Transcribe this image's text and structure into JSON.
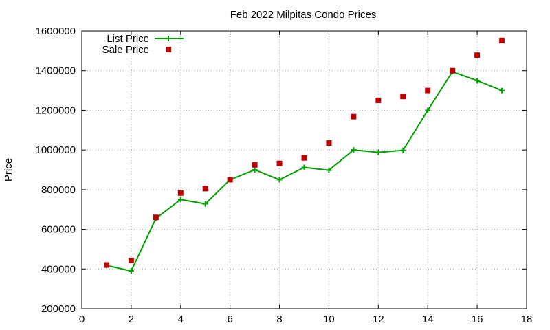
{
  "chart_data": {
    "type": "line",
    "title": "Feb 2022 Milpitas Condo Prices",
    "xlabel": "",
    "ylabel": "Price",
    "xlim": [
      0,
      18
    ],
    "ylim": [
      200000,
      1600000
    ],
    "x_ticks": [
      0,
      2,
      4,
      6,
      8,
      10,
      12,
      14,
      16,
      18
    ],
    "y_ticks": [
      200000,
      400000,
      600000,
      800000,
      1000000,
      1200000,
      1400000,
      1600000
    ],
    "x_tick_labels": [
      "0",
      "2",
      "4",
      "6",
      "8",
      "10",
      "12",
      "14",
      "16",
      "18"
    ],
    "y_tick_labels": [
      "200000",
      "400000",
      "600000",
      "800000",
      "1000000",
      "1200000",
      "1400000",
      "1600000"
    ],
    "grid": true,
    "legend_position": "top-left",
    "x": [
      1,
      2,
      3,
      4,
      5,
      6,
      7,
      8,
      9,
      10,
      11,
      12,
      13,
      14,
      15,
      16,
      17
    ],
    "series": [
      {
        "name": "List Price",
        "style": "line-with-plus-markers",
        "color": "#00a000",
        "values": [
          418000,
          390000,
          655000,
          750000,
          728000,
          850000,
          900000,
          850000,
          912000,
          898000,
          1000000,
          988000,
          998000,
          1200000,
          1395000,
          1350000,
          1300000
        ]
      },
      {
        "name": "Sale Price",
        "style": "square-markers",
        "color": "#c00000",
        "values": [
          420000,
          443000,
          660000,
          783000,
          805000,
          850000,
          925000,
          932000,
          960000,
          1035000,
          1168000,
          1250000,
          1270000,
          1300000,
          1400000,
          1478000,
          1552000
        ]
      }
    ]
  }
}
